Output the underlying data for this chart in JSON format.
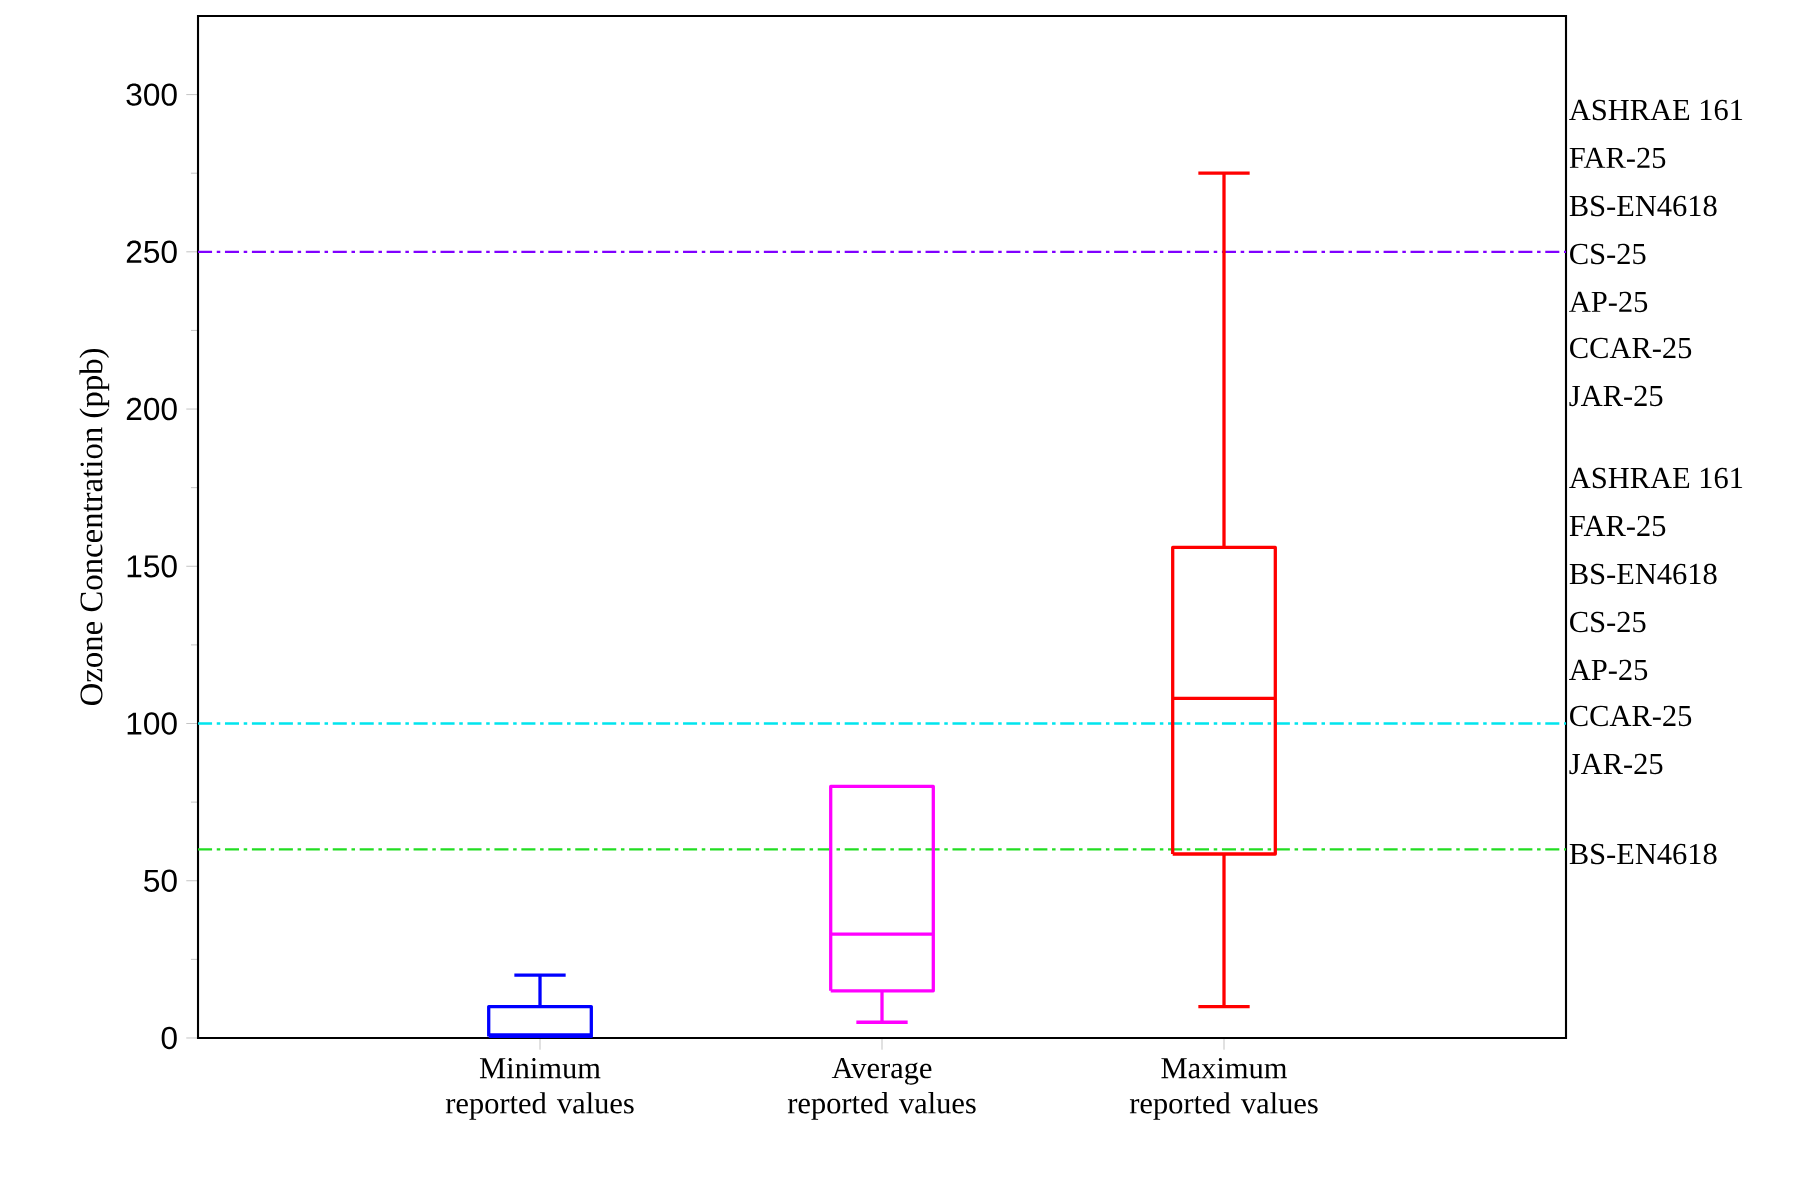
{
  "chart_data": {
    "type": "box",
    "ylabel": "Ozone Concentration (ppb)",
    "categories": [
      "Minimum reported values",
      "Average reported values",
      "Maximum reported values"
    ],
    "boxes": [
      {
        "low": 0.5,
        "q1": 0.5,
        "median": 1,
        "q3": 10,
        "high": 20
      },
      {
        "low": 5,
        "q1": 15,
        "median": 33,
        "q3": 80,
        "high": 80
      },
      {
        "low": 10,
        "q1": 58.5,
        "median": 108,
        "q3": 156,
        "high": 275
      }
    ],
    "colors": [
      "#0000ff",
      "#ff00ff",
      "#ff0000"
    ],
    "ylim": [
      0,
      325
    ],
    "yticks": [
      0,
      50,
      100,
      150,
      200,
      250,
      300
    ],
    "ref_lines": [
      {
        "axis": "y",
        "value": 250,
        "color": "#8000ff",
        "line_style": "dashdot"
      },
      {
        "axis": "y",
        "value": 100,
        "color": "#00e5ee",
        "line_style": "dashdot"
      },
      {
        "axis": "y",
        "value": 60,
        "color": "#22dd22",
        "line_style": "dashdot"
      }
    ],
    "annotations": [
      "ASHRAE 161",
      "FAR-25",
      "BS-EN4618",
      "CS-25",
      "AP-25",
      "CCAR-25",
      "JAR-25",
      "ASHRAE 161",
      "FAR-25",
      "BS-EN4618",
      "CS-25",
      "AP-25",
      "CCAR-25",
      "JAR-25",
      "BS-EN4618"
    ]
  }
}
